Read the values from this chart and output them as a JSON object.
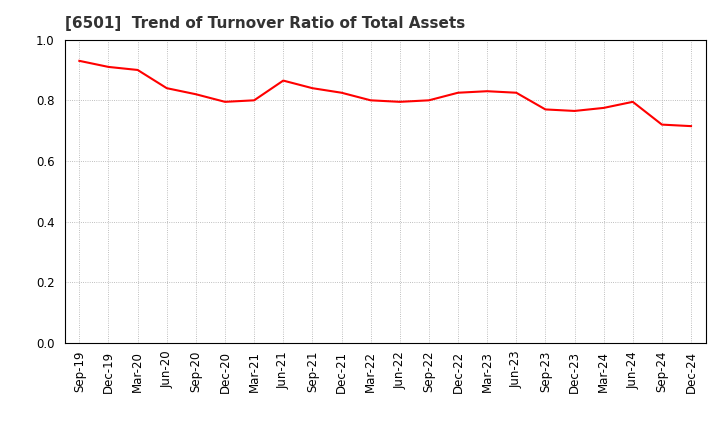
{
  "title": "[6501]  Trend of Turnover Ratio of Total Assets",
  "labels": [
    "Sep-19",
    "Dec-19",
    "Mar-20",
    "Jun-20",
    "Sep-20",
    "Dec-20",
    "Mar-21",
    "Jun-21",
    "Sep-21",
    "Dec-21",
    "Mar-22",
    "Jun-22",
    "Sep-22",
    "Dec-22",
    "Mar-23",
    "Jun-23",
    "Sep-23",
    "Dec-23",
    "Mar-24",
    "Jun-24",
    "Sep-24",
    "Dec-24"
  ],
  "values": [
    0.93,
    0.91,
    0.9,
    0.84,
    0.82,
    0.795,
    0.8,
    0.865,
    0.84,
    0.825,
    0.8,
    0.795,
    0.8,
    0.825,
    0.83,
    0.825,
    0.77,
    0.765,
    0.775,
    0.795,
    0.72,
    0.715
  ],
  "line_color": "#FF0000",
  "line_width": 1.5,
  "background_color": "#ffffff",
  "plot_background": "#ffffff",
  "grid_color": "#aaaaaa",
  "ylim": [
    0.0,
    1.0
  ],
  "yticks": [
    0.0,
    0.2,
    0.4,
    0.6,
    0.8,
    1.0
  ],
  "title_fontsize": 11,
  "title_color": "#333333",
  "tick_fontsize": 8.5
}
